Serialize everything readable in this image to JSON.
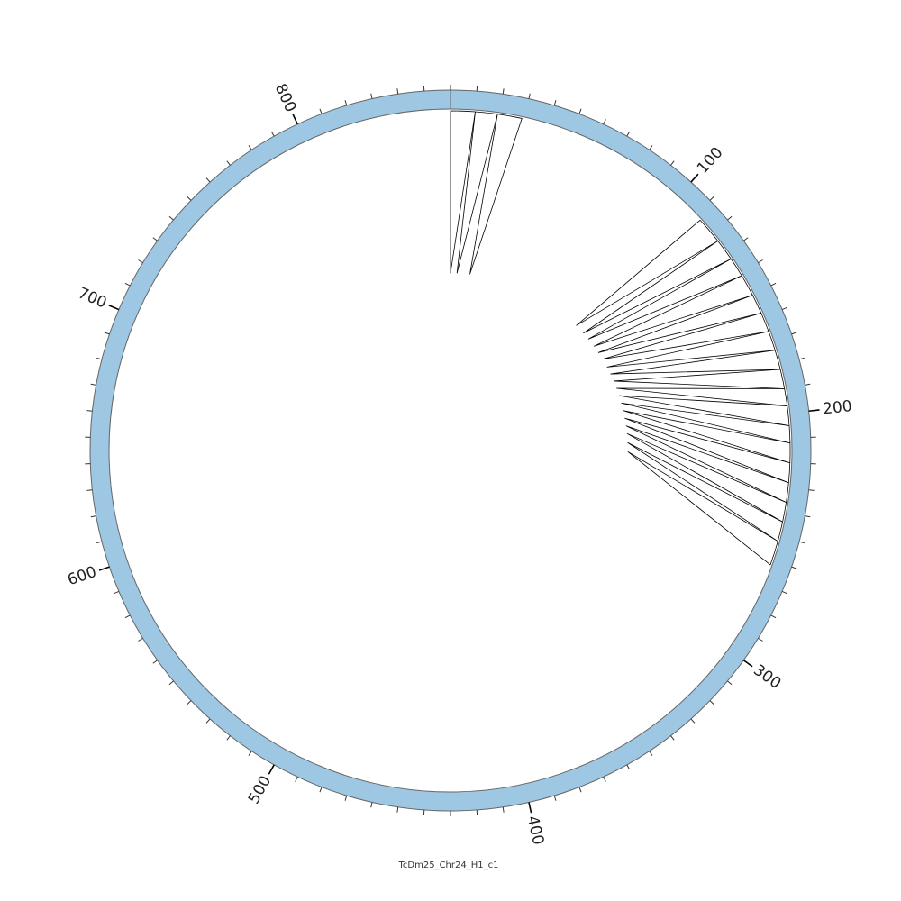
{
  "title": "TcDm25_Chr24_H1_c1",
  "colors": {
    "ring_fill": "#9dc7e2",
    "ring_stroke": "#666666",
    "tick": "#333333",
    "link": "#000000"
  },
  "chart_data": {
    "type": "circos",
    "genome_length": 860,
    "tick_minor_interval": 10,
    "tick_major_interval": 100,
    "tick_labels": [
      "100",
      "200",
      "300",
      "400",
      "500",
      "600",
      "700",
      "800"
    ],
    "feature_blocks": [
      {
        "start": 0,
        "end": 10,
        "inner_end": 0
      },
      {
        "start": 10,
        "end": 19,
        "inner_end": 5
      },
      {
        "start": 19,
        "end": 29,
        "inner_end": 15
      },
      {
        "start": 113,
        "end": 124,
        "inner_end": 108
      },
      {
        "start": 124,
        "end": 133,
        "inner_end": 116
      },
      {
        "start": 133,
        "end": 141,
        "inner_end": 122
      },
      {
        "start": 141,
        "end": 150,
        "inner_end": 129
      },
      {
        "start": 150,
        "end": 158,
        "inner_end": 135
      },
      {
        "start": 158,
        "end": 166,
        "inner_end": 141
      },
      {
        "start": 166,
        "end": 174,
        "inner_end": 148
      },
      {
        "start": 174,
        "end": 182,
        "inner_end": 154
      },
      {
        "start": 182,
        "end": 190,
        "inner_end": 160
      },
      {
        "start": 190,
        "end": 197,
        "inner_end": 166
      },
      {
        "start": 197,
        "end": 205,
        "inner_end": 172
      },
      {
        "start": 205,
        "end": 212,
        "inner_end": 178
      },
      {
        "start": 212,
        "end": 220,
        "inner_end": 184
      },
      {
        "start": 220,
        "end": 228,
        "inner_end": 190
      },
      {
        "start": 228,
        "end": 236,
        "inner_end": 196
      },
      {
        "start": 236,
        "end": 244,
        "inner_end": 202
      },
      {
        "start": 244,
        "end": 252,
        "inner_end": 209
      },
      {
        "start": 252,
        "end": 262,
        "inner_end": 216
      }
    ]
  }
}
